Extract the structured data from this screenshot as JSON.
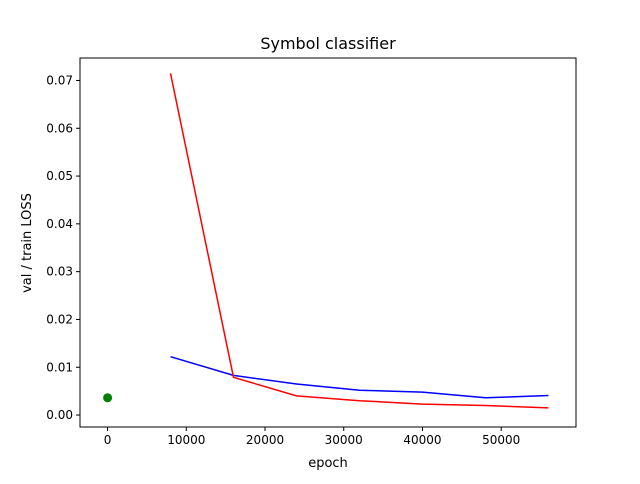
{
  "chart_data": {
    "type": "line",
    "title": "Symbol classifier",
    "xlabel": "epoch",
    "ylabel": "val / train LOSS",
    "xlim": [
      -3500,
      59500
    ],
    "ylim": [
      -0.0025,
      0.0747
    ],
    "x_ticks": [
      0,
      10000,
      20000,
      30000,
      40000,
      50000
    ],
    "x_tick_labels": [
      "0",
      "10000",
      "20000",
      "30000",
      "40000",
      "50000"
    ],
    "y_ticks": [
      0.0,
      0.01,
      0.02,
      0.03,
      0.04,
      0.05,
      0.06,
      0.07
    ],
    "y_tick_labels": [
      "0.00",
      "0.01",
      "0.02",
      "0.03",
      "0.04",
      "0.05",
      "0.06",
      "0.07"
    ],
    "grid": false,
    "legend": "none",
    "series": [
      {
        "color": "#0000ff",
        "kind": "line",
        "x": [
          8000,
          16000,
          24000,
          32000,
          40000,
          48000,
          56000
        ],
        "y": [
          0.0122,
          0.0083,
          0.0065,
          0.0052,
          0.0048,
          0.0036,
          0.0041
        ]
      },
      {
        "color": "#ff0000",
        "kind": "line",
        "x": [
          8000,
          16000,
          24000,
          32000,
          40000,
          48000,
          56000
        ],
        "y": [
          0.0715,
          0.0079,
          0.004,
          0.003,
          0.0023,
          0.002,
          0.0015
        ]
      },
      {
        "color": "#008000",
        "kind": "scatter",
        "x": [
          0
        ],
        "y": [
          0.0036
        ]
      }
    ]
  }
}
